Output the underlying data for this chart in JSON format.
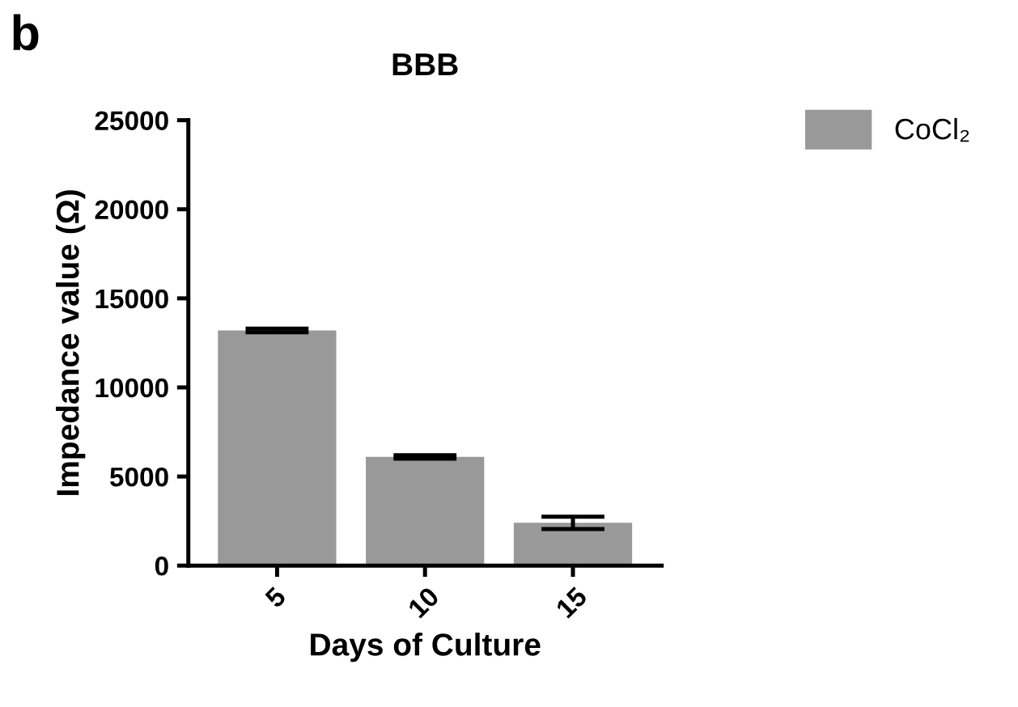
{
  "chart_data": {
    "type": "bar",
    "title": "BBB",
    "xlabel": "Days of Culture",
    "ylabel": "Impedance value (Ω)",
    "annotations": [
      "b"
    ],
    "categories": [
      "5",
      "10",
      "15"
    ],
    "series": [
      {
        "name": "CoCl₂",
        "color": "#999999",
        "values": [
          13200,
          6100,
          2400
        ],
        "errors": [
          100,
          100,
          350
        ]
      }
    ],
    "ylim": [
      0,
      25000
    ],
    "yticks": [
      0,
      5000,
      10000,
      15000,
      20000,
      25000
    ],
    "grid": false,
    "legend": "top right"
  }
}
